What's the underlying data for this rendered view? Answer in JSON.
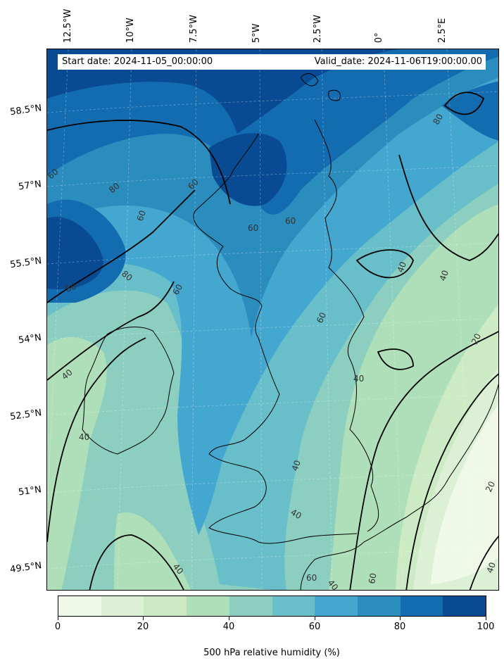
{
  "header": {
    "start_date": "Start date: 2024-11-05_00:00:00",
    "valid_date": "Valid_date: 2024-11-06T19:00:00.00"
  },
  "map": {
    "longitude_labels": [
      "12.5°W",
      "10°W",
      "7.5°W",
      "5°W",
      "2.5°W",
      "0°",
      "2.5°E"
    ],
    "latitude_labels": [
      "58.5°N",
      "57°N",
      "55.5°N",
      "54°N",
      "52.5°N",
      "51°N",
      "49.5°N"
    ],
    "contour_labels": [
      "60",
      "80",
      "80",
      "60",
      "60",
      "80",
      "80",
      "60",
      "60",
      "60",
      "60",
      "40",
      "40",
      "40",
      "40",
      "40",
      "40",
      "40",
      "20",
      "20",
      "40",
      "60",
      "40",
      "60",
      "40"
    ],
    "colors": {
      "rh_0_10": "#f0f9e8",
      "rh_10_20": "#dcf0d6",
      "rh_20_30": "#ccebc5",
      "rh_30_40": "#aedfb8",
      "rh_40_50": "#8ccfc0",
      "rh_50_60": "#68bec9",
      "rh_60_70": "#43a7cf",
      "rh_70_80": "#2b8cbe",
      "rh_80_90": "#136cb0",
      "rh_90_100": "#084b93"
    }
  },
  "colorbar": {
    "title": "500 hPa relative humidity (%)",
    "ticks": [
      "0",
      "20",
      "40",
      "60",
      "80",
      "100"
    ],
    "segment_colors": [
      "#f0f9e8",
      "#dcf0d6",
      "#ccebc5",
      "#aedfb8",
      "#8ccfc0",
      "#68bec9",
      "#43a7cf",
      "#2b8cbe",
      "#136cb0",
      "#084b93"
    ]
  }
}
